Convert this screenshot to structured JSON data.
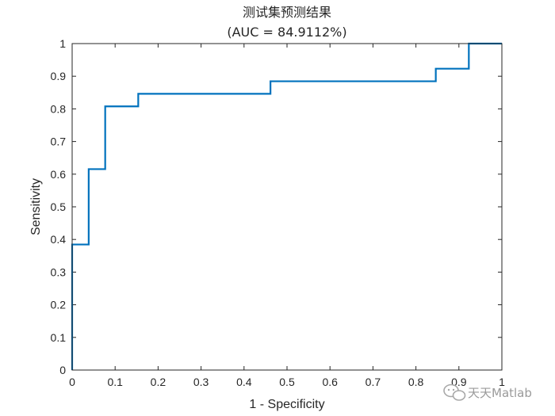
{
  "chart_data": {
    "type": "line",
    "title": "测试集预测结果",
    "subtitle": "(AUC = 84.9112%)",
    "xlabel": "1 - Specificity",
    "ylabel": "Sensitivity",
    "xlim": [
      0,
      1
    ],
    "ylim": [
      0,
      1
    ],
    "xticks": [
      "0",
      "0.1",
      "0.2",
      "0.3",
      "0.4",
      "0.5",
      "0.6",
      "0.7",
      "0.8",
      "0.9",
      "1"
    ],
    "yticks": [
      "0",
      "0.1",
      "0.2",
      "0.3",
      "0.4",
      "0.5",
      "0.6",
      "0.7",
      "0.8",
      "0.9",
      "1"
    ],
    "grid": false,
    "series": [
      {
        "color": "#0072BD",
        "x": [
          0,
          0,
          0.0385,
          0.0385,
          0.0769,
          0.0769,
          0.1538,
          0.1538,
          0.4615,
          0.4615,
          0.8462,
          0.8462,
          0.9231,
          0.9231,
          1
        ],
        "y": [
          0,
          0.3846,
          0.3846,
          0.6154,
          0.6154,
          0.8077,
          0.8077,
          0.8462,
          0.8462,
          0.8846,
          0.8846,
          0.9231,
          0.9231,
          1,
          1
        ]
      }
    ]
  },
  "watermark": {
    "text": "天天Matlab",
    "icon": "wechat-icon"
  }
}
